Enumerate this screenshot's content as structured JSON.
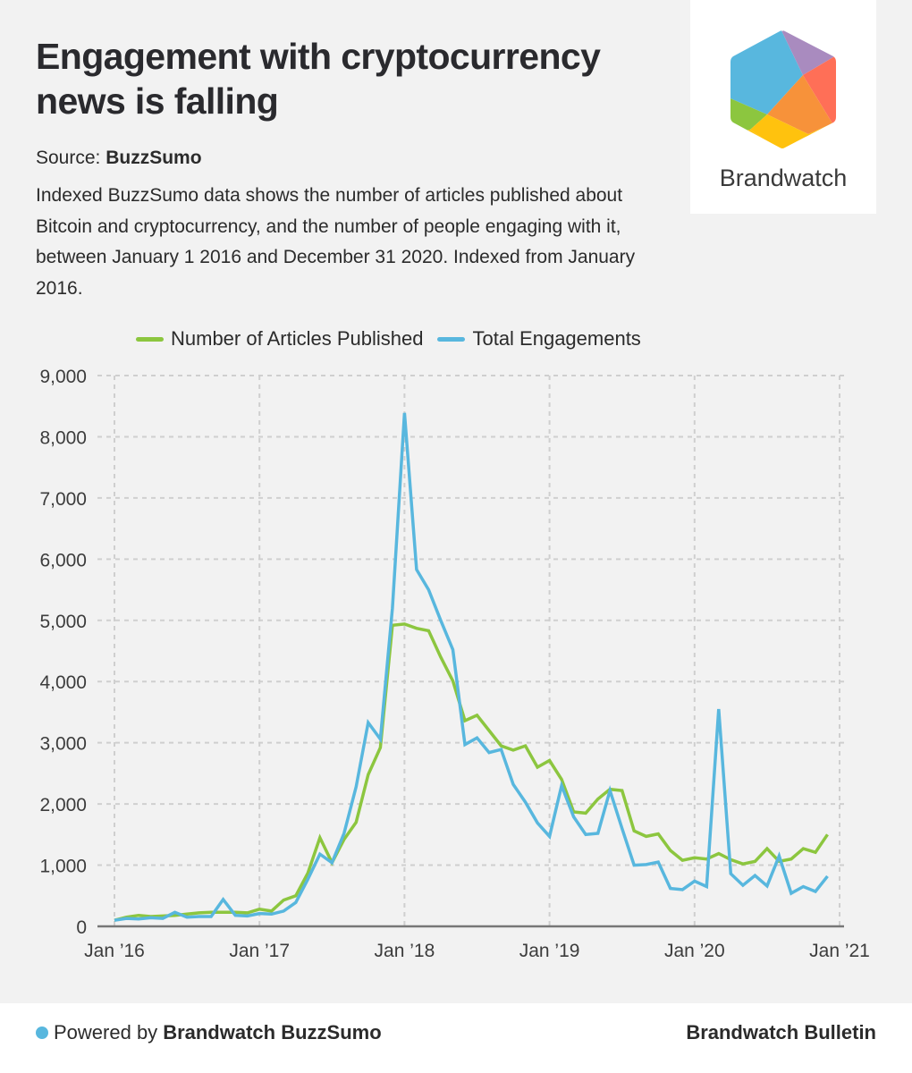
{
  "header": {
    "title": "Engagement with cryptocurrency news is falling",
    "source_label": "Source:",
    "source_name": "BuzzSumo",
    "description": "Indexed BuzzSumo data shows the number of articles published about Bitcoin and cryptocurrency, and the number of people engaging with it, between January 1 2016 and December 31 2020. Indexed from January 2016."
  },
  "logo": {
    "name": "Brandwatch",
    "icon": "brandwatch-hexagon-icon",
    "colors": [
      "#58b7de",
      "#a98bbf",
      "#ff6f57",
      "#f7923a",
      "#8cc63f",
      "#ffc20e"
    ]
  },
  "footer": {
    "powered_by_label": "Powered by",
    "powered_by_brand": "Brandwatch BuzzSumo",
    "publisher": "Brandwatch Bulletin",
    "dot_color": "#58b7de"
  },
  "chart_data": {
    "type": "line",
    "title": "Engagement with cryptocurrency news is falling",
    "xlabel": "",
    "ylabel": "",
    "ylim": [
      0,
      9000
    ],
    "yticks": [
      0,
      1000,
      2000,
      3000,
      4000,
      5000,
      6000,
      7000,
      8000,
      9000
    ],
    "ytick_labels": [
      "0",
      "1,000",
      "2,000",
      "3,000",
      "4,000",
      "5,000",
      "6,000",
      "7,000",
      "8,000",
      "9,000"
    ],
    "xtick_labels": [
      "Jan ’16",
      "Jan ’17",
      "Jan ’18",
      "Jan ’19",
      "Jan ’20",
      "Jan ’21"
    ],
    "x_start": "2016-01",
    "x_step": "month",
    "grid": true,
    "legend_position": "top-center",
    "series": [
      {
        "name": "Number of Articles Published",
        "color": "#8cc63f",
        "values": [
          100,
          150,
          180,
          160,
          170,
          180,
          200,
          220,
          230,
          230,
          230,
          220,
          280,
          250,
          430,
          500,
          870,
          1450,
          1040,
          1420,
          1700,
          2480,
          2920,
          4920,
          4940,
          4870,
          4830,
          4400,
          4010,
          3360,
          3450,
          3200,
          2950,
          2880,
          2950,
          2600,
          2710,
          2400,
          1870,
          1850,
          2080,
          2240,
          2220,
          1560,
          1470,
          1510,
          1240,
          1080,
          1120,
          1100,
          1190,
          1090,
          1020,
          1060,
          1270,
          1060,
          1100,
          1270,
          1210,
          1500
        ]
      },
      {
        "name": "Total Engagements",
        "color": "#58b7de",
        "values": [
          100,
          130,
          120,
          140,
          130,
          230,
          150,
          160,
          160,
          440,
          180,
          170,
          210,
          200,
          250,
          390,
          770,
          1180,
          1040,
          1520,
          2280,
          3330,
          3060,
          5200,
          8390,
          5830,
          5500,
          5000,
          4520,
          2970,
          3080,
          2840,
          2890,
          2320,
          2030,
          1690,
          1470,
          2300,
          1790,
          1500,
          1520,
          2220,
          1600,
          1000,
          1010,
          1050,
          620,
          600,
          740,
          650,
          3550,
          860,
          670,
          830,
          660,
          1150,
          540,
          650,
          570,
          820
        ]
      }
    ]
  }
}
